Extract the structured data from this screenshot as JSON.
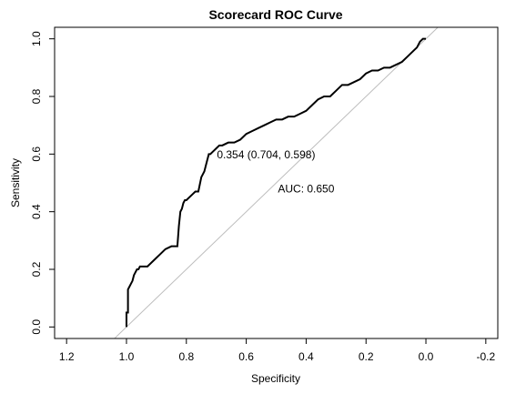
{
  "chart_data": {
    "type": "line",
    "title": "Scorecard ROC Curve",
    "xlabel": "Specificity",
    "ylabel": "Sensitivity",
    "xlim": [
      1.24,
      -0.24
    ],
    "ylim": [
      -0.04,
      1.04
    ],
    "x_reversed": true,
    "grid": false,
    "legend": "none",
    "x_ticks": [
      1.2,
      1.0,
      0.8,
      0.6,
      0.4,
      0.2,
      0.0,
      -0.2
    ],
    "x_tick_labels": [
      "1.2",
      "1.0",
      "0.8",
      "0.6",
      "0.4",
      "0.2",
      "0.0",
      "-0.2"
    ],
    "y_ticks": [
      0.0,
      0.2,
      0.4,
      0.6,
      0.8,
      1.0
    ],
    "y_tick_labels": [
      "0.0",
      "0.2",
      "0.4",
      "0.6",
      "0.8",
      "1.0"
    ],
    "series": [
      {
        "color": "#000000",
        "x": [
          1.0,
          1.0,
          0.995,
          0.995,
          0.99,
          0.985,
          0.98,
          0.975,
          0.97,
          0.965,
          0.96,
          0.955,
          0.95,
          0.93,
          0.91,
          0.89,
          0.87,
          0.85,
          0.83,
          0.825,
          0.82,
          0.815,
          0.81,
          0.805,
          0.8,
          0.79,
          0.78,
          0.77,
          0.76,
          0.75,
          0.74,
          0.735,
          0.73,
          0.725,
          0.72,
          0.71,
          0.7,
          0.69,
          0.68,
          0.66,
          0.64,
          0.62,
          0.6,
          0.58,
          0.56,
          0.54,
          0.52,
          0.5,
          0.48,
          0.46,
          0.44,
          0.42,
          0.4,
          0.38,
          0.36,
          0.34,
          0.32,
          0.3,
          0.28,
          0.26,
          0.24,
          0.22,
          0.2,
          0.18,
          0.16,
          0.14,
          0.12,
          0.1,
          0.08,
          0.06,
          0.04,
          0.03,
          0.02,
          0.01,
          0.0
        ],
        "y": [
          0.0,
          0.05,
          0.05,
          0.13,
          0.14,
          0.15,
          0.16,
          0.18,
          0.19,
          0.2,
          0.2,
          0.21,
          0.21,
          0.21,
          0.23,
          0.25,
          0.27,
          0.28,
          0.28,
          0.35,
          0.4,
          0.41,
          0.43,
          0.44,
          0.44,
          0.45,
          0.46,
          0.47,
          0.47,
          0.52,
          0.54,
          0.56,
          0.58,
          0.6,
          0.6,
          0.61,
          0.62,
          0.63,
          0.63,
          0.64,
          0.64,
          0.65,
          0.67,
          0.68,
          0.69,
          0.7,
          0.71,
          0.72,
          0.72,
          0.73,
          0.73,
          0.74,
          0.75,
          0.77,
          0.79,
          0.8,
          0.8,
          0.82,
          0.84,
          0.84,
          0.85,
          0.86,
          0.88,
          0.89,
          0.89,
          0.9,
          0.9,
          0.91,
          0.92,
          0.94,
          0.96,
          0.97,
          0.99,
          1.0,
          1.0
        ]
      }
    ],
    "reference_line": {
      "x": [
        1.04,
        -0.04
      ],
      "y": [
        -0.04,
        1.04
      ],
      "color": "#bdbdbd"
    },
    "annotations": [
      {
        "text": "0.354 (0.704, 0.598)",
        "x": 0.704,
        "y": 0.598
      },
      {
        "text": "AUC: 0.650",
        "x": 0.4,
        "y": 0.48
      }
    ]
  }
}
